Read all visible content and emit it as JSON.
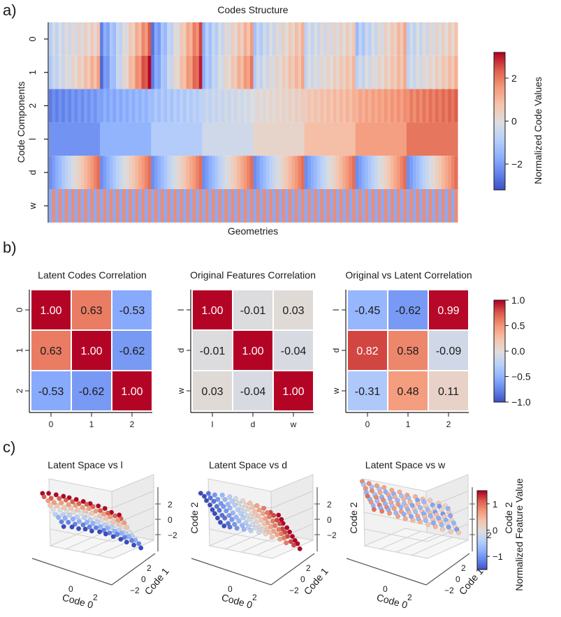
{
  "panel_labels": [
    "a)",
    "b)",
    "c)"
  ],
  "chart_data": [
    {
      "type": "heatmap",
      "id": "codes-structure",
      "title": "Codes Structure",
      "xlabel": "Geometries",
      "ylabel": "Code Components",
      "row_labels": [
        "0",
        "1",
        "2",
        "l",
        "d",
        "w"
      ],
      "n_geometries": 512,
      "colorbar": {
        "label": "Normalized Code Values",
        "range": [
          -3.2,
          3.2
        ],
        "ticks": [
          2,
          0,
          -2
        ],
        "tick_labels": [
          "2",
          "0",
          "−2"
        ]
      },
      "row_descriptions": {
        "0": "oscillating pattern in 8 blocks of 64, amplitude strongest in blocks 1-2",
        "1": "similar to 0 with stronger red ramps",
        "2": "monotonic increase across blocks from blue to red",
        "l": "8 constant-ish blocks increasing from -2 to 2",
        "d": "8 blocks, each ramping blue to red within block",
        "w": "fast alternating blue/red stripes"
      }
    },
    {
      "type": "heatmap",
      "id": "latent-codes-correlation",
      "title": "Latent Codes Correlation",
      "x_labels": [
        "0",
        "1",
        "2"
      ],
      "y_labels": [
        "0",
        "1",
        "2"
      ],
      "values": [
        [
          1.0,
          0.63,
          -0.53
        ],
        [
          0.63,
          1.0,
          -0.62
        ],
        [
          -0.53,
          -0.62,
          1.0
        ]
      ],
      "value_labels": [
        [
          "1.00",
          "0.63",
          "-0.53"
        ],
        [
          "0.63",
          "1.00",
          "-0.62"
        ],
        [
          "-0.53",
          "-0.62",
          "1.00"
        ]
      ]
    },
    {
      "type": "heatmap",
      "id": "original-features-correlation",
      "title": "Original Features Correlation",
      "x_labels": [
        "l",
        "d",
        "w"
      ],
      "y_labels": [
        "l",
        "d",
        "w"
      ],
      "values": [
        [
          1.0,
          -0.01,
          0.03
        ],
        [
          -0.01,
          1.0,
          -0.04
        ],
        [
          0.03,
          -0.04,
          1.0
        ]
      ],
      "value_labels": [
        [
          "1.00",
          "-0.01",
          "0.03"
        ],
        [
          "-0.01",
          "1.00",
          "-0.04"
        ],
        [
          "0.03",
          "-0.04",
          "1.00"
        ]
      ]
    },
    {
      "type": "heatmap",
      "id": "original-vs-latent-correlation",
      "title": "Original vs Latent Correlation",
      "x_labels": [
        "0",
        "1",
        "2"
      ],
      "y_labels": [
        "l",
        "d",
        "w"
      ],
      "values": [
        [
          -0.45,
          -0.62,
          0.99
        ],
        [
          0.82,
          0.58,
          -0.09
        ],
        [
          -0.31,
          0.48,
          0.11
        ]
      ],
      "value_labels": [
        [
          "-0.45",
          "-0.62",
          "0.99"
        ],
        [
          "0.82",
          "0.58",
          "-0.09"
        ],
        [
          "-0.31",
          "0.48",
          "0.11"
        ]
      ]
    },
    {
      "type": "colorbar",
      "id": "correlation-colorbar",
      "range": [
        -1.0,
        1.0
      ],
      "ticks": [
        1.0,
        0.5,
        0.0,
        -0.5,
        -1.0
      ],
      "tick_labels": [
        "1.0",
        "0.5",
        "0.0",
        "−0.5",
        "−1.0"
      ]
    },
    {
      "type": "scatter",
      "id": "latent-space-panels",
      "panels": [
        {
          "title": "Latent Space vs l",
          "feature": "l"
        },
        {
          "title": "Latent Space vs d",
          "feature": "d"
        },
        {
          "title": "Latent Space vs w",
          "feature": "w"
        }
      ],
      "axes": {
        "x_label": "Code 0",
        "y_label": "Code 1",
        "z_label": "Code 2",
        "x_ticks": [
          "0",
          "2"
        ],
        "y_ticks": [
          "−2",
          "0",
          "2"
        ],
        "z_ticks": [
          "2",
          "0",
          "−2"
        ]
      },
      "colorbar": {
        "label": "Normalized Feature Value",
        "range": [
          -1.5,
          1.5
        ],
        "ticks": [
          1,
          0,
          -1
        ],
        "tick_labels": [
          "1",
          "0",
          "−1"
        ]
      }
    }
  ]
}
